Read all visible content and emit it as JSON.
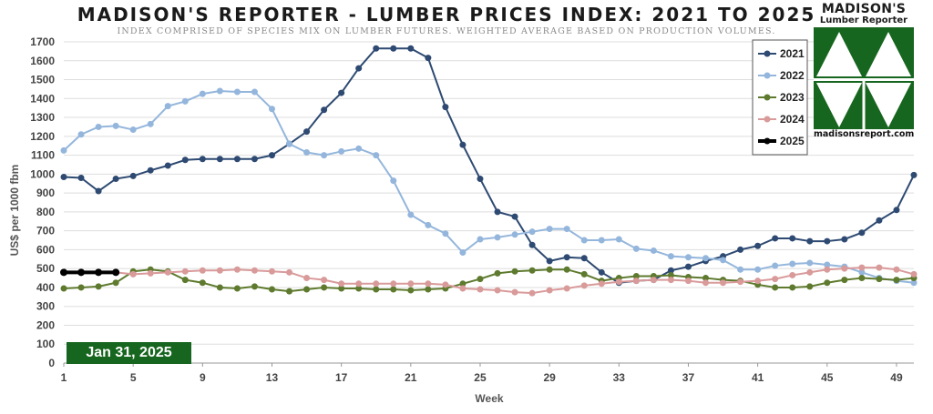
{
  "title": "MADISON'S REPORTER - LUMBER PRICES INDEX: 2021 TO 2025",
  "subtitle": "INDEX COMPRISED OF SPECIES MIX ON LUMBER FUTURES. WEIGHTED AVERAGE BASED ON PRODUCTION VOLUMES.",
  "logo": {
    "name": "MADISON'S",
    "sub": "Lumber Reporter",
    "url": "madisonsreport.com",
    "colors": {
      "green": "#17661f",
      "bg": "#ffffff"
    }
  },
  "date_badge": "Jan 31, 2025",
  "chart_data": {
    "type": "line",
    "title": "MADISON'S REPORTER - LUMBER PRICES INDEX: 2021 TO 2025",
    "subtitle": "INDEX COMPRISED OF SPECIES MIX ON LUMBER FUTURES. WEIGHTED AVERAGE BASED ON PRODUCTION VOLUMES.",
    "xlabel": "Week",
    "ylabel": "US$ per 1000 fbm",
    "xlim": [
      1,
      50
    ],
    "ylim": [
      0,
      1700
    ],
    "xticks": [
      1,
      5,
      9,
      13,
      17,
      21,
      25,
      29,
      33,
      37,
      41,
      45,
      49
    ],
    "yticks": [
      0,
      100,
      200,
      300,
      400,
      500,
      600,
      700,
      800,
      900,
      1000,
      1100,
      1200,
      1300,
      1400,
      1500,
      1600,
      1700
    ],
    "grid": true,
    "legend": "top-right",
    "series": [
      {
        "name": "2021",
        "color": "#2e4a72",
        "values": [
          985,
          980,
          910,
          975,
          990,
          1020,
          1045,
          1075,
          1080,
          1080,
          1080,
          1080,
          1100,
          1160,
          1225,
          1340,
          1430,
          1560,
          1665,
          1665,
          1665,
          1615,
          1355,
          1155,
          975,
          800,
          775,
          625,
          540,
          560,
          555,
          480,
          425,
          435,
          440,
          490,
          510,
          540,
          565,
          600,
          620,
          660,
          660,
          645,
          645,
          655,
          690,
          755,
          810,
          995
        ]
      },
      {
        "name": "2022",
        "color": "#94b6dc",
        "values": [
          1125,
          1210,
          1250,
          1255,
          1235,
          1265,
          1360,
          1385,
          1425,
          1440,
          1435,
          1435,
          1345,
          1160,
          1115,
          1100,
          1120,
          1135,
          1100,
          965,
          785,
          730,
          685,
          585,
          655,
          665,
          680,
          695,
          710,
          710,
          650,
          650,
          655,
          605,
          595,
          565,
          560,
          555,
          545,
          495,
          495,
          515,
          525,
          530,
          520,
          510,
          480,
          450,
          435,
          425
        ]
      },
      {
        "name": "2023",
        "color": "#5e7a2e",
        "values": [
          395,
          400,
          405,
          425,
          485,
          495,
          485,
          440,
          425,
          400,
          395,
          405,
          390,
          380,
          390,
          400,
          395,
          395,
          390,
          390,
          385,
          390,
          395,
          420,
          445,
          475,
          485,
          490,
          495,
          495,
          470,
          435,
          450,
          460,
          460,
          465,
          455,
          450,
          440,
          435,
          415,
          400,
          400,
          405,
          425,
          440,
          450,
          445,
          440,
          450
        ]
      },
      {
        "name": "2024",
        "color": "#d99a9a",
        "values": [
          480,
          480,
          480,
          480,
          470,
          475,
          480,
          485,
          490,
          490,
          495,
          490,
          485,
          480,
          450,
          440,
          420,
          420,
          420,
          420,
          420,
          420,
          415,
          395,
          390,
          385,
          375,
          370,
          385,
          395,
          410,
          420,
          430,
          435,
          440,
          440,
          435,
          425,
          425,
          430,
          435,
          445,
          465,
          480,
          495,
          500,
          505,
          505,
          495,
          470
        ]
      },
      {
        "name": "2025",
        "color": "#000000",
        "values": [
          480,
          480,
          480,
          480
        ]
      }
    ]
  }
}
